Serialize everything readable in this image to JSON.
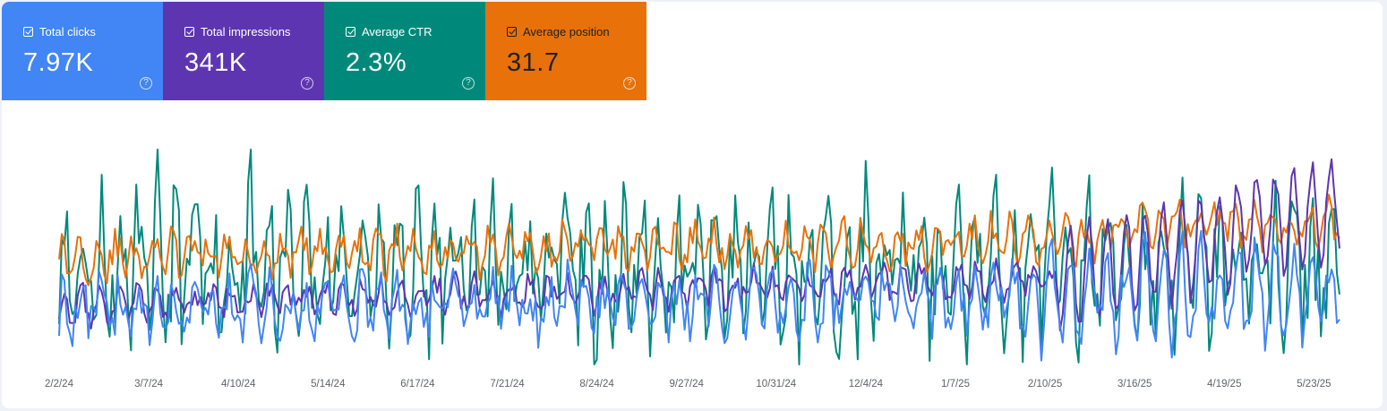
{
  "metrics": [
    {
      "id": "clicks",
      "label": "Total clicks",
      "value": "7.97K",
      "color": "#4285f4",
      "checked": true
    },
    {
      "id": "impressions",
      "label": "Total impressions",
      "value": "341K",
      "color": "#5e35b1",
      "checked": true
    },
    {
      "id": "ctr",
      "label": "Average CTR",
      "value": "2.3%",
      "color": "#00897b",
      "checked": true
    },
    {
      "id": "position",
      "label": "Average position",
      "value": "31.7",
      "color": "#e8710a",
      "checked": true
    }
  ],
  "help_icon": "help-circle-icon",
  "chart_data": {
    "type": "line",
    "x_tick_labels": [
      "2/2/24",
      "3/7/24",
      "4/10/24",
      "5/14/24",
      "6/17/24",
      "7/21/24",
      "8/24/24",
      "9/27/24",
      "10/31/24",
      "12/4/24",
      "1/7/25",
      "2/10/25",
      "3/16/25",
      "4/19/25",
      "5/23/25"
    ],
    "x_range": [
      "2/2/24",
      "5/28/25"
    ],
    "y_axis_labels": "hidden",
    "grid": false,
    "legend": "none (metric cards act as series toggles)",
    "series": [
      {
        "name": "Total clicks",
        "color": "#4285f4",
        "summary_value": "7.97K",
        "approx_daily_range": [
          0,
          30
        ],
        "note": "daily values, weekly seasonality, peak near 2/7/25"
      },
      {
        "name": "Total impressions",
        "color": "#5e35b1",
        "summary_value": "341K",
        "approx_daily_range": [
          400,
          1900
        ],
        "note": "daily values, rising sharply after 3/16/25"
      },
      {
        "name": "Average CTR",
        "color": "#00897b",
        "summary_value": "2.3%",
        "approx_daily_range": [
          0.5,
          5.5
        ],
        "note": "daily values, high volatility"
      },
      {
        "name": "Average position",
        "color": "#e8710a",
        "summary_value": "31.7",
        "approx_daily_range": [
          25,
          45
        ],
        "note": "daily values, fairly stable"
      }
    ]
  }
}
